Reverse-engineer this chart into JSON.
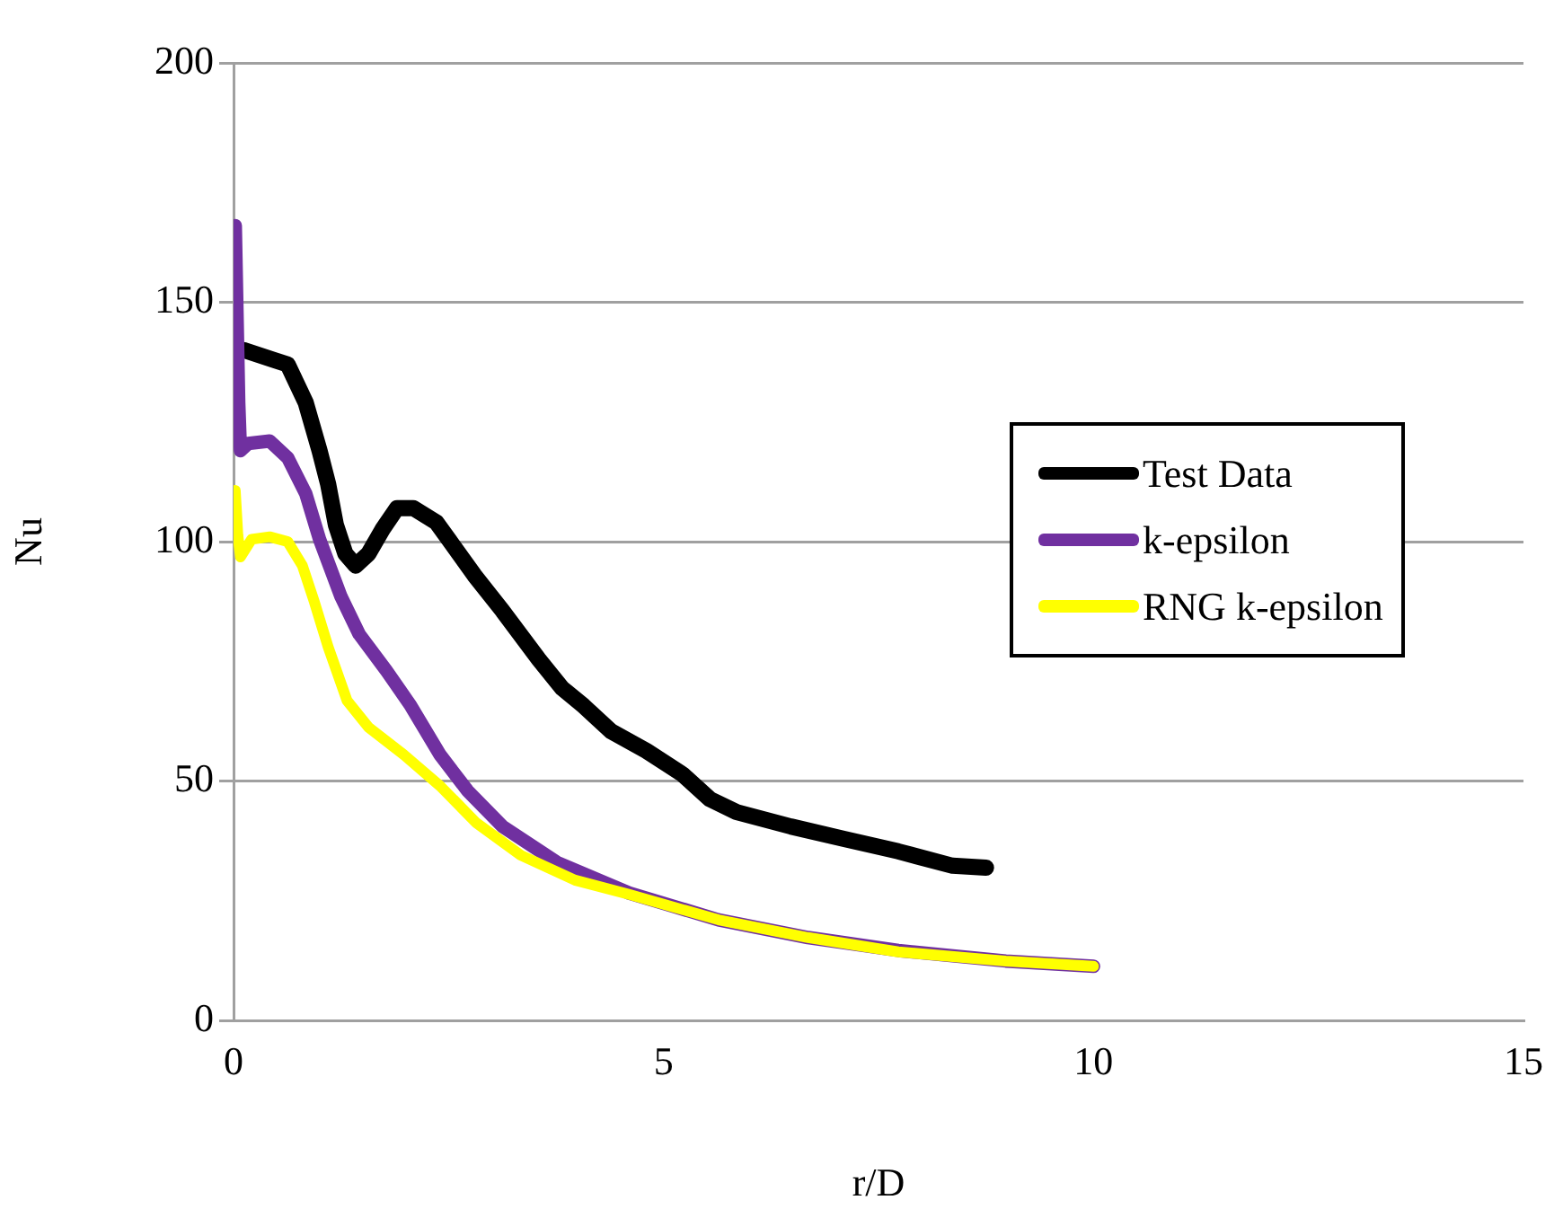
{
  "chart_data": {
    "type": "line",
    "xlabel": "r/D",
    "ylabel": "Nu",
    "xlim": [
      0,
      15
    ],
    "xticks": [
      0,
      5,
      10,
      15
    ],
    "ylim": [
      0,
      200
    ],
    "yticks": [
      0,
      50,
      100,
      150,
      200
    ],
    "grid": "y",
    "legend": "right",
    "marker": "none",
    "line_style": "solid",
    "series": [
      {
        "name": "Test Data",
        "color": "#000000",
        "x": [
          0.12,
          0.46,
          0.63,
          0.84,
          1.0,
          1.1,
          1.19,
          1.3,
          1.42,
          1.57,
          1.73,
          1.9,
          2.09,
          2.36,
          2.5,
          2.8,
          3.13,
          3.55,
          3.82,
          4.07,
          4.39,
          4.8,
          5.22,
          5.54,
          5.85,
          6.48,
          7.1,
          7.73,
          8.36,
          8.75
        ],
        "values": [
          140,
          138,
          137,
          129,
          119,
          112,
          103.5,
          97.5,
          95,
          97.5,
          102.5,
          107,
          107,
          104,
          100.5,
          93,
          85.5,
          75.4,
          69.4,
          65.7,
          60.4,
          56.3,
          51.4,
          46.2,
          43.5,
          40.5,
          37.9,
          35.3,
          32.3,
          31.9
        ]
      },
      {
        "name": "k-epsilon",
        "color": "#7030a0",
        "x": [
          0.02,
          0.06,
          0.08,
          0.17,
          0.42,
          0.63,
          0.84,
          1.0,
          1.25,
          1.46,
          1.78,
          2.05,
          2.4,
          2.72,
          3.13,
          3.76,
          4.6,
          5.64,
          6.68,
          7.73,
          8.98,
          10.0
        ],
        "values": [
          166,
          129,
          119,
          120.5,
          121,
          117.5,
          110,
          100.5,
          88.5,
          80.7,
          73,
          66,
          55.5,
          48,
          40.5,
          33,
          26.6,
          21,
          17.3,
          14.6,
          12.4,
          11.3
        ]
      },
      {
        "name": "RNG k-epsilon",
        "color": "#ffff00",
        "x": [
          0.02,
          0.05,
          0.08,
          0.21,
          0.42,
          0.63,
          0.8,
          0.94,
          1.1,
          1.32,
          1.57,
          1.98,
          2.4,
          2.82,
          3.34,
          3.97,
          4.6,
          5.64,
          6.68,
          7.73,
          8.98,
          10.0
        ],
        "values": [
          110.7,
          101.3,
          96.8,
          100.5,
          101,
          100,
          95,
          87.4,
          78,
          66.8,
          61.2,
          55.5,
          49,
          41.3,
          34.5,
          29.3,
          26.3,
          21,
          17.3,
          14.3,
          12.4,
          11.3
        ]
      }
    ]
  }
}
